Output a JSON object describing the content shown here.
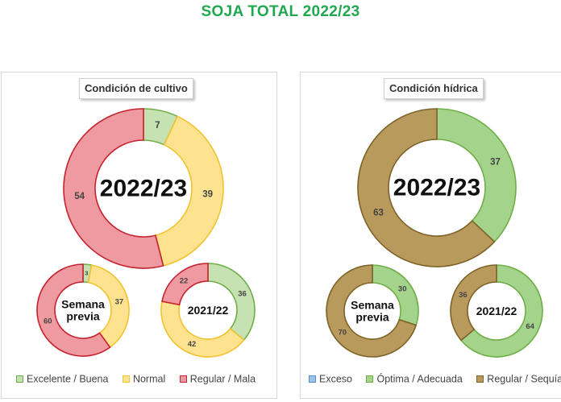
{
  "title": "SOJA TOTAL 2022/23",
  "chart_data": [
    {
      "type": "donut",
      "title": "Condición de cultivo",
      "legend": [
        {
          "label": "Excelente / Buena",
          "fill": "#c6e2b3",
          "stroke": "#6fae47"
        },
        {
          "label": "Normal",
          "fill": "#fde28f",
          "stroke": "#f2c230"
        },
        {
          "label": "Regular / Mala",
          "fill": "#ee9aa0",
          "stroke": "#c4232f"
        }
      ],
      "donuts": [
        {
          "center_label": [
            "2022/23"
          ],
          "values": [
            7,
            39,
            54
          ]
        },
        {
          "center_label": [
            "Semana",
            "previa"
          ],
          "values": [
            3,
            37,
            60
          ]
        },
        {
          "center_label": [
            "2021/22"
          ],
          "values": [
            36,
            42,
            22
          ]
        }
      ]
    },
    {
      "type": "donut",
      "title": "Condición hídrica",
      "legend": [
        {
          "label": "Exceso",
          "fill": "#9dc3e6",
          "stroke": "#4f8fcc"
        },
        {
          "label": "Óptima / Adecuada",
          "fill": "#a4d38b",
          "stroke": "#6fae47"
        },
        {
          "label": "Regular / Sequía",
          "fill": "#b89a5c",
          "stroke": "#7d6328"
        }
      ],
      "donuts": [
        {
          "center_label": [
            "2022/23"
          ],
          "values": [
            0,
            37,
            63
          ]
        },
        {
          "center_label": [
            "Semana",
            "previa"
          ],
          "values": [
            0,
            30,
            70
          ]
        },
        {
          "center_label": [
            "2021/22"
          ],
          "values": [
            0,
            64,
            36
          ]
        }
      ]
    }
  ]
}
